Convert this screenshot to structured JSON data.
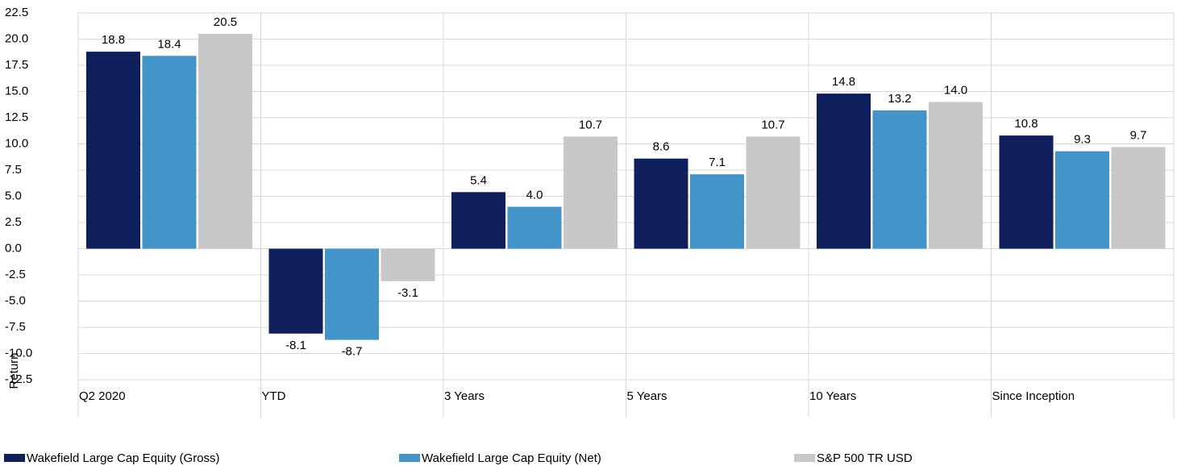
{
  "chart_data": {
    "type": "bar",
    "y_label": "Return",
    "categories": [
      "Q2 2020",
      "YTD",
      "3 Years",
      "5 Years",
      "10 Years",
      "Since Inception"
    ],
    "series": [
      {
        "name": "Wakefield Large Cap Equity (Gross)",
        "color": "#0f1f5c",
        "values": [
          18.8,
          -8.1,
          5.4,
          8.6,
          14.8,
          10.8
        ],
        "value_labels": [
          "18.8",
          "-8.1",
          "5.4",
          "8.6",
          "14.8",
          "10.8"
        ]
      },
      {
        "name": "Wakefield Large Cap Equity (Net)",
        "color": "#4394c8",
        "values": [
          18.4,
          -8.7,
          4.0,
          7.1,
          13.2,
          9.3
        ],
        "value_labels": [
          "18.4",
          "-8.7",
          "4.0",
          "7.1",
          "13.2",
          "9.3"
        ]
      },
      {
        "name": "S&P 500 TR USD",
        "color": "#c8c8c8",
        "values": [
          20.5,
          -3.1,
          10.7,
          10.7,
          14.0,
          9.7
        ],
        "value_labels": [
          "20.5",
          "-3.1",
          "10.7",
          "10.7",
          "14.0",
          "9.7"
        ]
      }
    ],
    "ylim": [
      -12.5,
      22.5
    ],
    "yticks": [
      22.5,
      {
        "value": 20,
        "label": "20.0"
      },
      17.5,
      {
        "value": 15,
        "label": "15.0"
      },
      12.5,
      {
        "value": 10,
        "label": "10.0"
      },
      7.5,
      {
        "value": 5,
        "label": "5.0"
      },
      2.5,
      {
        "value": 0,
        "label": "0.0"
      },
      -2.5,
      {
        "value": -5,
        "label": "-5.0"
      },
      -7.5,
      {
        "value": -10,
        "label": "-10.0"
      },
      -12.5
    ],
    "grid": true,
    "legend": "bottom"
  }
}
